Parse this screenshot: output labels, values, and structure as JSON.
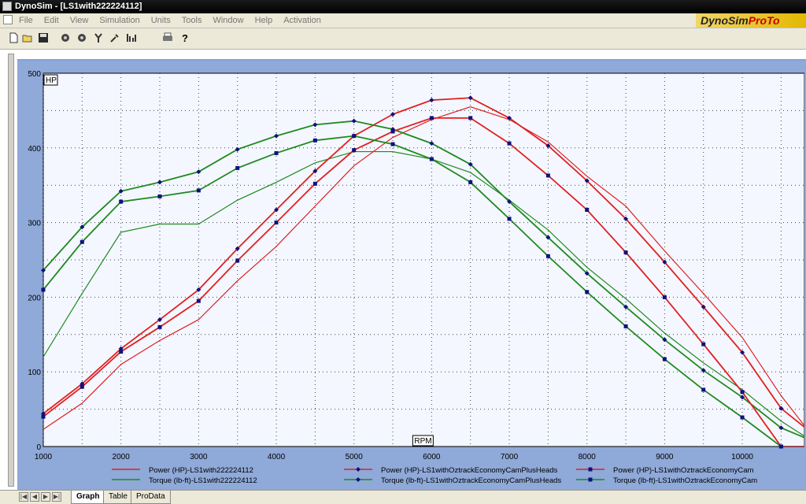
{
  "window": {
    "title": "DynoSim - [LS1with222224112]"
  },
  "menu": [
    "File",
    "Edit",
    "View",
    "Simulation",
    "Units",
    "Tools",
    "Window",
    "Help",
    "Activation"
  ],
  "brand": {
    "main": "DynoSim",
    "sub": "ProTo"
  },
  "toolbar_icons": [
    "new-icon",
    "open-icon",
    "save-icon",
    "engine-icon",
    "engine2-icon",
    "wrench-icon",
    "gear-icon",
    "chart-icon",
    "print-icon",
    "help-icon"
  ],
  "tabs": [
    "Graph",
    "Table",
    "ProData"
  ],
  "active_tab": "Graph",
  "chart_data": {
    "type": "line",
    "ylabel": "HP",
    "xlabel": "RPM",
    "xlim": [
      1000,
      10800
    ],
    "ylim": [
      0,
      500
    ],
    "xticks": [
      1000,
      2000,
      3000,
      4000,
      5000,
      6000,
      7000,
      8000,
      9000,
      10000
    ],
    "yticks": [
      0,
      100,
      200,
      300,
      400,
      500
    ],
    "grid": true,
    "series": [
      {
        "name": "Power (HP)-LS1with222224112",
        "color": "#e02020",
        "marker": "none",
        "x": [
          1000,
          1500,
          2000,
          2500,
          3000,
          3500,
          4000,
          4500,
          5000,
          5500,
          6000,
          6500,
          7000,
          7500,
          8000,
          8500,
          9000,
          9500,
          10000,
          10500,
          10800
        ],
        "y": [
          23,
          58,
          110,
          142,
          170,
          222,
          268,
          322,
          376,
          414,
          438,
          455,
          438,
          408,
          362,
          322,
          262,
          205,
          146,
          68,
          28
        ]
      },
      {
        "name": "Torque (lb-ft)-LS1with222224112",
        "color": "#1e8a1e",
        "marker": "none",
        "x": [
          1000,
          1500,
          2000,
          2500,
          3000,
          3500,
          4000,
          4500,
          5000,
          5500,
          6000,
          6500,
          7000,
          7500,
          8000,
          8500,
          9000,
          9500,
          10000,
          10500,
          10800
        ],
        "y": [
          120,
          205,
          287,
          298,
          298,
          330,
          354,
          380,
          395,
          395,
          385,
          367,
          330,
          290,
          240,
          198,
          152,
          112,
          76,
          34,
          14
        ]
      },
      {
        "name": "Power (HP)-LS1withOztrackEconomyCamPlusHeads",
        "color": "#e02020",
        "marker": "diamond",
        "x": [
          1000,
          1500,
          2000,
          2500,
          3000,
          3500,
          4000,
          4500,
          5000,
          5500,
          6000,
          6500,
          7000,
          7500,
          8000,
          8500,
          9000,
          9500,
          10000,
          10500,
          10800
        ],
        "y": [
          44,
          84,
          131,
          170,
          210,
          265,
          317,
          369,
          416,
          445,
          464,
          467,
          440,
          403,
          356,
          305,
          247,
          187,
          126,
          51,
          26
        ]
      },
      {
        "name": "Torque (lb-ft)-LS1withOztrackEconomyCamPlusHeads",
        "color": "#1e8a1e",
        "marker": "diamond",
        "x": [
          1000,
          1500,
          2000,
          2500,
          3000,
          3500,
          4000,
          4500,
          5000,
          5500,
          6000,
          6500,
          7000,
          7500,
          8000,
          8500,
          9000,
          9500,
          10000,
          10500,
          10800
        ],
        "y": [
          236,
          294,
          342,
          354,
          368,
          398,
          416,
          431,
          436,
          425,
          406,
          378,
          328,
          280,
          232,
          187,
          143,
          102,
          66,
          25,
          12
        ]
      },
      {
        "name": "Power (HP)-LS1withOztrackEconomyCam",
        "color": "#e02020",
        "marker": "square",
        "x": [
          1000,
          1500,
          2000,
          2500,
          3000,
          3500,
          4000,
          4500,
          5000,
          5500,
          6000,
          6500,
          7000,
          7500,
          8000,
          8500,
          9000,
          9500,
          10000,
          10500,
          10800
        ],
        "y": [
          40,
          80,
          127,
          160,
          195,
          249,
          300,
          352,
          397,
          422,
          440,
          440,
          406,
          363,
          317,
          260,
          200,
          137,
          73,
          0,
          0
        ]
      },
      {
        "name": "Torque (lb-ft)-LS1withOztrackEconomyCam",
        "color": "#1e8a1e",
        "marker": "square",
        "x": [
          1000,
          1500,
          2000,
          2500,
          3000,
          3500,
          4000,
          4500,
          5000,
          5500,
          6000,
          6500,
          7000,
          7500,
          8000,
          8500,
          9000,
          9500,
          10000,
          10500
        ],
        "y": [
          210,
          274,
          328,
          335,
          343,
          373,
          393,
          410,
          416,
          405,
          385,
          354,
          305,
          255,
          207,
          161,
          117,
          76,
          39,
          0
        ]
      }
    ]
  }
}
